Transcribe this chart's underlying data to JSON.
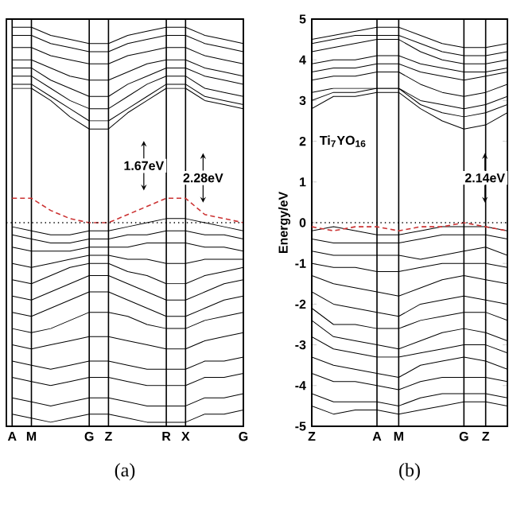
{
  "chart_data": [
    {
      "type": "line",
      "title": "(a)",
      "categories": [
        "A",
        "M",
        null,
        null,
        "G",
        "Z",
        null,
        null,
        "R",
        "X",
        null,
        null,
        "G"
      ],
      "ylim": [
        -5,
        5
      ],
      "tick_labels": "x",
      "grid": "x",
      "ref_lines": [
        {
          "axis": "y",
          "value": 0,
          "color": "#000000",
          "line_style": "dotted"
        }
      ],
      "annotations": [
        "1.67eV",
        "2.28eV"
      ],
      "series": [
        {
          "color": "#000000",
          "values": [
            4.8,
            4.8,
            4.6,
            4.5,
            4.4,
            4.4,
            4.6,
            4.7,
            4.8,
            4.8,
            4.6,
            4.5,
            4.4
          ]
        },
        {
          "color": "#000000",
          "values": [
            4.6,
            4.6,
            4.4,
            4.3,
            4.2,
            4.2,
            4.4,
            4.5,
            4.6,
            4.6,
            4.4,
            4.3,
            4.2
          ]
        },
        {
          "color": "#000000",
          "values": [
            4.3,
            4.3,
            4.1,
            4.0,
            3.9,
            3.9,
            4.1,
            4.2,
            4.3,
            4.3,
            4.1,
            4.0,
            3.9
          ]
        },
        {
          "color": "#000000",
          "values": [
            4.0,
            4.0,
            3.8,
            3.6,
            3.5,
            3.5,
            3.7,
            3.9,
            4.0,
            4.0,
            3.8,
            3.7,
            3.6
          ]
        },
        {
          "color": "#000000",
          "values": [
            3.8,
            3.8,
            3.5,
            3.3,
            3.1,
            3.1,
            3.4,
            3.6,
            3.8,
            3.8,
            3.6,
            3.5,
            3.4
          ]
        },
        {
          "color": "#000000",
          "values": [
            3.6,
            3.6,
            3.3,
            3.0,
            2.8,
            2.8,
            3.1,
            3.4,
            3.6,
            3.6,
            3.3,
            3.2,
            3.1
          ]
        },
        {
          "color": "#000000",
          "values": [
            3.4,
            3.4,
            3.1,
            2.8,
            2.5,
            2.5,
            2.8,
            3.1,
            3.4,
            3.4,
            3.1,
            3.0,
            2.9
          ]
        },
        {
          "color": "#000000",
          "values": [
            3.3,
            3.3,
            3.0,
            2.6,
            2.3,
            2.3,
            2.7,
            3.0,
            3.3,
            3.3,
            3.0,
            2.9,
            2.8
          ]
        },
        {
          "color": "#000000",
          "values": [
            -0.1,
            -0.2,
            -0.3,
            -0.3,
            -0.2,
            -0.2,
            -0.1,
            0.0,
            0.1,
            0.1,
            0.0,
            -0.1,
            -0.2
          ]
        },
        {
          "color": "#000000",
          "values": [
            -0.3,
            -0.4,
            -0.5,
            -0.5,
            -0.4,
            -0.4,
            -0.3,
            -0.3,
            -0.2,
            -0.2,
            -0.3,
            -0.3,
            -0.4
          ]
        },
        {
          "color": "#000000",
          "values": [
            -0.6,
            -0.7,
            -0.7,
            -0.7,
            -0.6,
            -0.6,
            -0.6,
            -0.5,
            -0.5,
            -0.5,
            -0.6,
            -0.6,
            -0.7
          ]
        },
        {
          "color": "#000000",
          "values": [
            -1.0,
            -1.1,
            -1.0,
            -0.9,
            -0.8,
            -0.8,
            -0.9,
            -0.9,
            -1.0,
            -1.0,
            -0.9,
            -0.9,
            -0.9
          ]
        },
        {
          "color": "#000000",
          "values": [
            -1.4,
            -1.5,
            -1.3,
            -1.1,
            -1.0,
            -1.0,
            -1.2,
            -1.3,
            -1.5,
            -1.5,
            -1.3,
            -1.2,
            -1.1
          ]
        },
        {
          "color": "#000000",
          "values": [
            -1.8,
            -1.9,
            -1.7,
            -1.5,
            -1.3,
            -1.3,
            -1.5,
            -1.7,
            -1.9,
            -1.9,
            -1.7,
            -1.5,
            -1.4
          ]
        },
        {
          "color": "#000000",
          "values": [
            -2.2,
            -2.3,
            -2.1,
            -1.9,
            -1.7,
            -1.7,
            -1.9,
            -2.1,
            -2.3,
            -2.3,
            -2.1,
            -1.9,
            -1.8
          ]
        },
        {
          "color": "#000000",
          "values": [
            -2.6,
            -2.7,
            -2.6,
            -2.4,
            -2.2,
            -2.2,
            -2.3,
            -2.5,
            -2.6,
            -2.6,
            -2.4,
            -2.3,
            -2.2
          ]
        },
        {
          "color": "#000000",
          "values": [
            -3.0,
            -3.1,
            -3.0,
            -2.9,
            -2.8,
            -2.8,
            -2.9,
            -3.0,
            -3.1,
            -3.1,
            -2.9,
            -2.8,
            -2.7
          ]
        },
        {
          "color": "#000000",
          "values": [
            -3.4,
            -3.5,
            -3.6,
            -3.5,
            -3.4,
            -3.4,
            -3.5,
            -3.6,
            -3.6,
            -3.6,
            -3.4,
            -3.4,
            -3.3
          ]
        },
        {
          "color": "#000000",
          "values": [
            -3.8,
            -3.9,
            -4.0,
            -3.9,
            -3.8,
            -3.8,
            -3.9,
            -4.0,
            -4.0,
            -4.0,
            -3.8,
            -3.8,
            -3.7
          ]
        },
        {
          "color": "#000000",
          "values": [
            -4.3,
            -4.4,
            -4.5,
            -4.4,
            -4.3,
            -4.3,
            -4.4,
            -4.5,
            -4.5,
            -4.5,
            -4.3,
            -4.3,
            -4.2
          ]
        },
        {
          "color": "#000000",
          "values": [
            -4.7,
            -4.8,
            -4.9,
            -4.8,
            -4.7,
            -4.7,
            -4.8,
            -4.9,
            -4.9,
            -4.9,
            -4.7,
            -4.7,
            -4.6
          ]
        },
        {
          "color": "#cc3333",
          "line_style": "dashed",
          "values": [
            0.6,
            0.6,
            0.3,
            0.1,
            0.0,
            0.0,
            0.2,
            0.4,
            0.6,
            0.6,
            0.2,
            0.1,
            0.0
          ]
        }
      ]
    },
    {
      "type": "line",
      "title": "(b)",
      "ylabel": "Energy/eV",
      "categories": [
        "Z",
        null,
        null,
        "A",
        "M",
        null,
        null,
        "G",
        "Z",
        null
      ],
      "ylim": [
        -5,
        5
      ],
      "yticks": [
        -5,
        -4,
        -3,
        -2,
        -1,
        0,
        1,
        2,
        3,
        4,
        5
      ],
      "grid": "x",
      "ref_lines": [
        {
          "axis": "y",
          "value": 0,
          "color": "#000000",
          "line_style": "dotted"
        }
      ],
      "annotations": [
        "Ti$_{7}$YO$_{16}$",
        "2.14eV"
      ],
      "series": [
        {
          "color": "#000000",
          "values": [
            4.5,
            4.6,
            4.7,
            4.8,
            4.8,
            4.6,
            4.4,
            4.3,
            4.3,
            4.4
          ]
        },
        {
          "color": "#000000",
          "values": [
            4.4,
            4.5,
            4.6,
            4.6,
            4.6,
            4.4,
            4.2,
            4.1,
            4.1,
            4.2
          ]
        },
        {
          "color": "#000000",
          "values": [
            4.2,
            4.3,
            4.4,
            4.5,
            4.5,
            4.2,
            4.0,
            3.9,
            3.9,
            4.0
          ]
        },
        {
          "color": "#000000",
          "values": [
            3.9,
            4.0,
            4.0,
            4.1,
            4.1,
            3.9,
            3.8,
            3.7,
            3.7,
            3.8
          ]
        },
        {
          "color": "#000000",
          "values": [
            3.7,
            3.8,
            3.8,
            3.9,
            3.9,
            3.7,
            3.6,
            3.5,
            3.6,
            3.7
          ]
        },
        {
          "color": "#000000",
          "values": [
            3.5,
            3.6,
            3.6,
            3.7,
            3.7,
            3.4,
            3.2,
            3.1,
            3.2,
            3.4
          ]
        },
        {
          "color": "#000000",
          "values": [
            3.2,
            3.3,
            3.3,
            3.3,
            3.3,
            3.0,
            2.9,
            2.8,
            2.9,
            3.1
          ]
        },
        {
          "color": "#000000",
          "values": [
            3.0,
            3.2,
            3.2,
            3.3,
            3.3,
            2.9,
            2.7,
            2.6,
            2.7,
            2.9
          ]
        },
        {
          "color": "#000000",
          "values": [
            2.8,
            3.1,
            3.1,
            3.2,
            3.2,
            2.8,
            2.5,
            2.3,
            2.4,
            2.7
          ]
        },
        {
          "color": "#000000",
          "values": [
            -0.2,
            -0.1,
            -0.2,
            -0.3,
            -0.3,
            -0.2,
            -0.1,
            -0.1,
            -0.1,
            -0.2
          ]
        },
        {
          "color": "#000000",
          "values": [
            -0.4,
            -0.5,
            -0.5,
            -0.5,
            -0.5,
            -0.4,
            -0.3,
            -0.3,
            -0.3,
            -0.4
          ]
        },
        {
          "color": "#000000",
          "values": [
            -0.7,
            -0.8,
            -0.8,
            -0.8,
            -0.8,
            -0.9,
            -0.8,
            -0.7,
            -0.6,
            -0.8
          ]
        },
        {
          "color": "#000000",
          "values": [
            -1.0,
            -1.1,
            -1.1,
            -1.2,
            -1.2,
            -1.1,
            -1.0,
            -1.0,
            -1.0,
            -1.1
          ]
        },
        {
          "color": "#000000",
          "values": [
            -1.3,
            -1.5,
            -1.6,
            -1.7,
            -1.8,
            -1.6,
            -1.4,
            -1.3,
            -1.4,
            -1.5
          ]
        },
        {
          "color": "#000000",
          "values": [
            -1.7,
            -2.0,
            -2.1,
            -2.2,
            -2.3,
            -2.0,
            -1.9,
            -1.8,
            -1.9,
            -2.0
          ]
        },
        {
          "color": "#000000",
          "values": [
            -2.1,
            -2.5,
            -2.5,
            -2.6,
            -2.6,
            -2.4,
            -2.3,
            -2.2,
            -2.2,
            -2.4
          ]
        },
        {
          "color": "#000000",
          "values": [
            -2.4,
            -2.8,
            -2.9,
            -3.0,
            -3.1,
            -2.9,
            -2.7,
            -2.6,
            -2.7,
            -2.9
          ]
        },
        {
          "color": "#000000",
          "values": [
            -2.8,
            -3.1,
            -3.2,
            -3.3,
            -3.3,
            -3.2,
            -3.1,
            -3.0,
            -3.0,
            -3.2
          ]
        },
        {
          "color": "#000000",
          "values": [
            -3.3,
            -3.5,
            -3.6,
            -3.7,
            -3.8,
            -3.5,
            -3.4,
            -3.3,
            -3.4,
            -3.6
          ]
        },
        {
          "color": "#000000",
          "values": [
            -3.7,
            -3.9,
            -3.9,
            -4.0,
            -4.1,
            -3.9,
            -3.8,
            -3.8,
            -3.8,
            -3.9
          ]
        },
        {
          "color": "#000000",
          "values": [
            -4.2,
            -4.4,
            -4.4,
            -4.4,
            -4.5,
            -4.3,
            -4.2,
            -4.2,
            -4.2,
            -4.3
          ]
        },
        {
          "color": "#000000",
          "values": [
            -4.5,
            -4.7,
            -4.6,
            -4.6,
            -4.7,
            -4.6,
            -4.5,
            -4.4,
            -4.4,
            -4.5
          ]
        },
        {
          "color": "#cc3333",
          "line_style": "dashed",
          "values": [
            -0.1,
            -0.2,
            -0.1,
            -0.1,
            -0.2,
            -0.1,
            -0.1,
            0.0,
            -0.1,
            -0.2
          ]
        }
      ]
    }
  ]
}
